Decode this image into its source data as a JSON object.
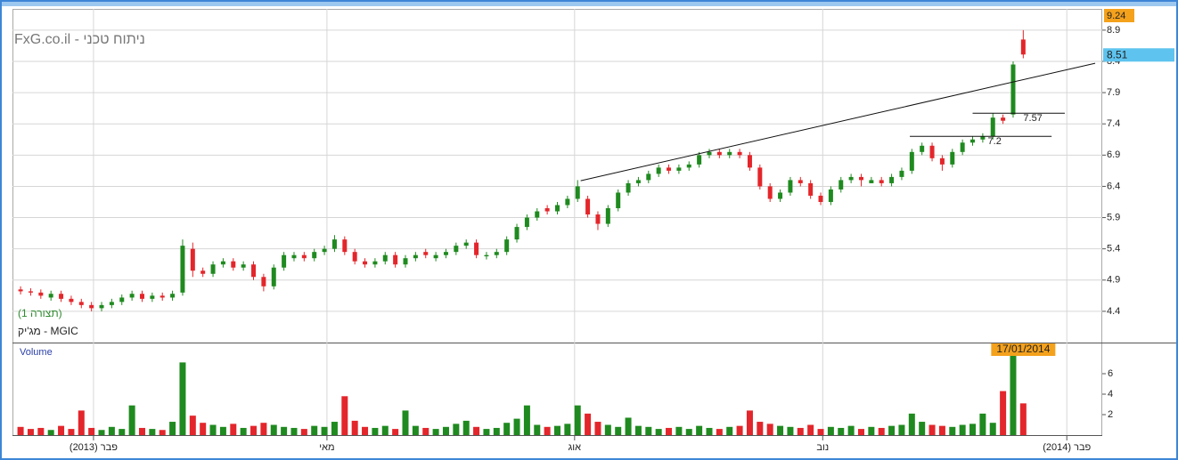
{
  "chart_data": {
    "type": "candlestick",
    "title": "ניתוח טכני - FxG.co.il",
    "config_label": "(תצורה 1)",
    "symbol_label": "MGIC - מג'יק",
    "up_color": "#1f8a1f",
    "down_color": "#e3262b",
    "candles": {
      "open": [
        4.75,
        4.72,
        4.7,
        4.62,
        4.68,
        4.6,
        4.55,
        4.5,
        4.45,
        4.5,
        4.55,
        4.62,
        4.68,
        4.6,
        4.65,
        4.62,
        4.7,
        5.4,
        5.05,
        5.0,
        5.15,
        5.2,
        5.1,
        5.15,
        4.95,
        4.8,
        5.1,
        5.25,
        5.3,
        5.25,
        5.35,
        5.4,
        5.55,
        5.35,
        5.2,
        5.15,
        5.2,
        5.3,
        5.15,
        5.25,
        5.35,
        5.25,
        5.3,
        5.35,
        5.45,
        5.5,
        5.28,
        5.3,
        5.35,
        5.55,
        5.75,
        5.9,
        6.05,
        6.0,
        6.1,
        6.2,
        6.2,
        5.95,
        5.8,
        6.05,
        6.3,
        6.45,
        6.5,
        6.6,
        6.7,
        6.65,
        6.7,
        6.75,
        6.9,
        6.95,
        6.9,
        6.95,
        6.9,
        6.7,
        6.4,
        6.2,
        6.3,
        6.5,
        6.45,
        6.25,
        6.15,
        6.35,
        6.5,
        6.55,
        6.45,
        6.5,
        6.45,
        6.55,
        6.65,
        6.95,
        7.05,
        6.85,
        6.75,
        6.95,
        7.1,
        7.15,
        7.2,
        7.5,
        7.55,
        8.75
      ],
      "high": [
        4.8,
        4.77,
        4.75,
        4.73,
        4.73,
        4.65,
        4.6,
        4.55,
        4.55,
        4.6,
        4.67,
        4.73,
        4.73,
        4.7,
        4.7,
        4.73,
        5.55,
        5.5,
        5.1,
        5.2,
        5.25,
        5.25,
        5.2,
        5.2,
        5.0,
        5.15,
        5.35,
        5.35,
        5.35,
        5.4,
        5.45,
        5.62,
        5.6,
        5.4,
        5.25,
        5.25,
        5.35,
        5.35,
        5.3,
        5.35,
        5.4,
        5.35,
        5.4,
        5.5,
        5.55,
        5.55,
        5.35,
        5.4,
        5.6,
        5.8,
        5.95,
        6.05,
        6.1,
        6.15,
        6.25,
        6.5,
        6.25,
        6.0,
        6.1,
        6.35,
        6.5,
        6.55,
        6.65,
        6.75,
        6.75,
        6.75,
        6.8,
        6.95,
        7.0,
        7.0,
        7.0,
        7.0,
        6.95,
        6.75,
        6.45,
        6.35,
        6.55,
        6.55,
        6.5,
        6.3,
        6.4,
        6.55,
        6.6,
        6.6,
        6.55,
        6.55,
        6.6,
        6.7,
        7.0,
        7.1,
        7.1,
        6.9,
        7.0,
        7.15,
        7.2,
        7.25,
        7.57,
        7.55,
        8.4,
        8.9
      ],
      "low": [
        4.67,
        4.65,
        4.6,
        4.57,
        4.55,
        4.5,
        4.45,
        4.4,
        4.4,
        4.45,
        4.5,
        4.57,
        4.55,
        4.55,
        4.57,
        4.57,
        4.65,
        4.95,
        4.95,
        4.95,
        5.1,
        5.05,
        5.05,
        4.9,
        4.72,
        4.75,
        5.05,
        5.2,
        5.2,
        5.2,
        5.3,
        5.35,
        5.3,
        5.15,
        5.1,
        5.1,
        5.15,
        5.1,
        5.1,
        5.2,
        5.25,
        5.2,
        5.25,
        5.3,
        5.4,
        5.25,
        5.23,
        5.25,
        5.3,
        5.5,
        5.7,
        5.85,
        5.95,
        5.95,
        6.05,
        6.15,
        5.9,
        5.7,
        5.75,
        6.0,
        6.25,
        6.4,
        6.45,
        6.55,
        6.6,
        6.6,
        6.65,
        6.7,
        6.85,
        6.85,
        6.85,
        6.85,
        6.65,
        6.35,
        6.15,
        6.15,
        6.25,
        6.4,
        6.2,
        6.1,
        6.1,
        6.3,
        6.45,
        6.4,
        6.45,
        6.4,
        6.4,
        6.5,
        6.6,
        6.9,
        6.8,
        6.65,
        6.7,
        6.9,
        7.05,
        7.1,
        7.15,
        7.4,
        7.5,
        8.45
      ],
      "close": [
        4.72,
        4.7,
        4.65,
        4.68,
        4.6,
        4.55,
        4.5,
        4.45,
        4.5,
        4.55,
        4.62,
        4.68,
        4.6,
        4.65,
        4.62,
        4.68,
        5.45,
        5.05,
        5.0,
        5.15,
        5.2,
        5.1,
        5.15,
        4.95,
        4.8,
        5.1,
        5.3,
        5.3,
        5.25,
        5.35,
        5.4,
        5.55,
        5.35,
        5.2,
        5.15,
        5.2,
        5.3,
        5.15,
        5.25,
        5.3,
        5.3,
        5.3,
        5.35,
        5.45,
        5.5,
        5.3,
        5.3,
        5.35,
        5.55,
        5.75,
        5.9,
        6.0,
        6.0,
        6.1,
        6.2,
        6.4,
        5.95,
        5.8,
        6.05,
        6.3,
        6.45,
        6.5,
        6.6,
        6.7,
        6.65,
        6.7,
        6.75,
        6.9,
        6.95,
        6.9,
        6.95,
        6.9,
        6.7,
        6.4,
        6.2,
        6.3,
        6.5,
        6.45,
        6.25,
        6.15,
        6.35,
        6.5,
        6.55,
        6.5,
        6.5,
        6.45,
        6.55,
        6.65,
        6.95,
        7.05,
        6.85,
        6.75,
        6.95,
        7.1,
        7.15,
        7.2,
        7.5,
        7.45,
        8.35,
        8.51
      ]
    },
    "ylim": [
      3.9,
      9.24
    ],
    "yticks": [
      4.4,
      4.9,
      5.4,
      5.9,
      6.4,
      6.9,
      7.4,
      7.9,
      8.4,
      8.9
    ],
    "xlim": [
      -0.8,
      106.8
    ],
    "xticks": [
      {
        "value": 7.2,
        "label": "פבר (2013)"
      },
      {
        "value": 30.25,
        "label": "מאי"
      },
      {
        "value": 54.7,
        "label": "אוג"
      },
      {
        "value": 79.2,
        "label": "נוב"
      },
      {
        "value": 103.3,
        "label": "פבר (2014)"
      }
    ],
    "grid": true,
    "trendline": {
      "x": [
        55.3,
        106.1
      ],
      "y": [
        6.49,
        8.37
      ]
    },
    "levels": [
      {
        "value": 7.57,
        "x": [
          94.0,
          103.1
        ]
      },
      {
        "value": 7.2,
        "x": [
          87.8,
          101.8
        ]
      }
    ],
    "high_tag": 9.24,
    "last_tag": 8.51,
    "date_tag": "17/01/2014",
    "volume": {
      "label": "Volume",
      "values": [
        0.8,
        0.6,
        0.7,
        0.5,
        0.9,
        0.6,
        2.4,
        0.7,
        0.5,
        0.8,
        0.6,
        2.9,
        0.7,
        0.6,
        0.5,
        1.3,
        7.1,
        1.9,
        1.2,
        1.0,
        0.8,
        1.1,
        0.7,
        0.9,
        1.2,
        1.0,
        0.8,
        0.7,
        0.6,
        0.9,
        0.8,
        1.3,
        3.8,
        1.4,
        0.8,
        0.7,
        0.9,
        0.6,
        2.4,
        0.9,
        0.7,
        0.6,
        0.8,
        1.1,
        1.4,
        0.8,
        0.6,
        0.7,
        1.2,
        1.6,
        2.9,
        1.0,
        0.8,
        0.9,
        1.1,
        2.9,
        2.1,
        1.3,
        1.0,
        0.8,
        1.7,
        0.9,
        0.8,
        0.6,
        0.7,
        0.8,
        0.6,
        0.9,
        0.7,
        0.6,
        0.8,
        0.9,
        2.4,
        1.3,
        1.1,
        0.9,
        0.8,
        0.7,
        1.0,
        0.6,
        0.8,
        0.7,
        0.9,
        0.6,
        0.8,
        0.7,
        0.9,
        1.0,
        2.1,
        1.3,
        1.0,
        0.9,
        0.8,
        1.0,
        1.1,
        2.1,
        1.2,
        4.3,
        8.0,
        3.1
      ],
      "ylim": [
        0,
        8.87
      ],
      "yticks": [
        2,
        4,
        6
      ]
    }
  }
}
